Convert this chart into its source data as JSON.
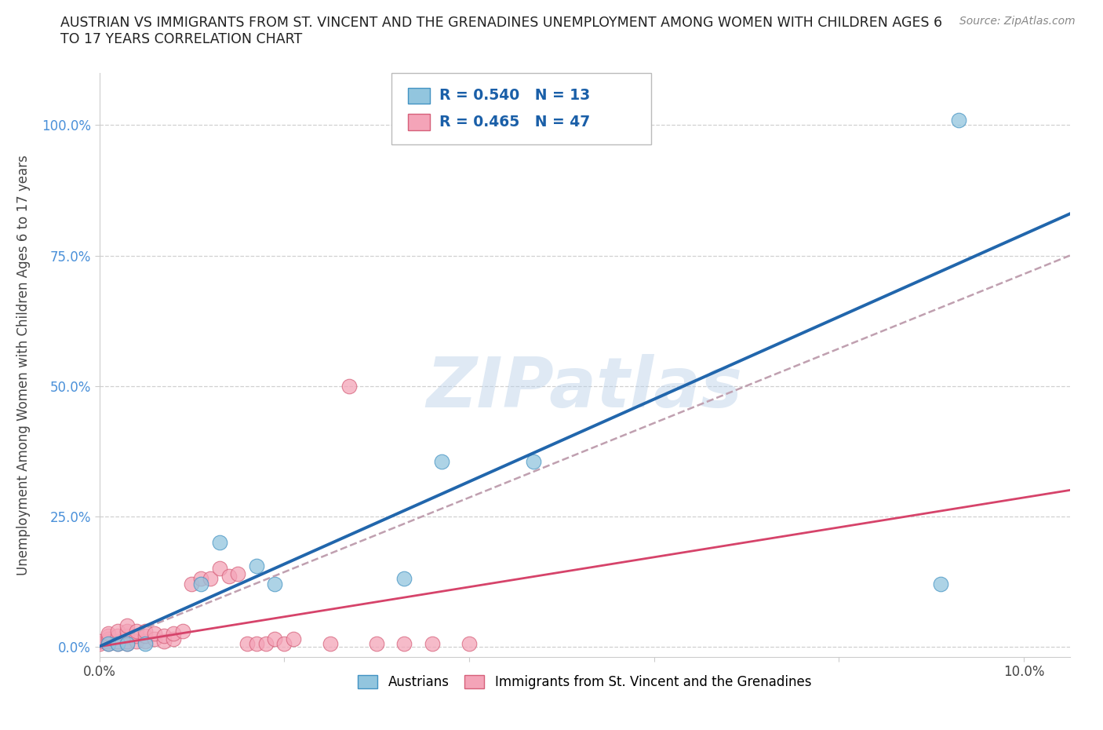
{
  "title_line1": "AUSTRIAN VS IMMIGRANTS FROM ST. VINCENT AND THE GRENADINES UNEMPLOYMENT AMONG WOMEN WITH CHILDREN AGES 6",
  "title_line2": "TO 17 YEARS CORRELATION CHART",
  "source": "Source: ZipAtlas.com",
  "ylabel": "Unemployment Among Women with Children Ages 6 to 17 years",
  "xlim": [
    0.0,
    0.105
  ],
  "ylim": [
    -0.02,
    1.1
  ],
  "yticks": [
    0.0,
    0.25,
    0.5,
    0.75,
    1.0
  ],
  "ytick_labels": [
    "0.0%",
    "25.0%",
    "50.0%",
    "75.0%",
    "100.0%"
  ],
  "xtick_vals": [
    0.0,
    0.02,
    0.04,
    0.06,
    0.08,
    0.1
  ],
  "xtick_labels": [
    "0.0%",
    "",
    "",
    "",
    "",
    "10.0%"
  ],
  "blue_color": "#92c5de",
  "blue_edge": "#4393c3",
  "pink_color": "#f4a4b8",
  "pink_edge": "#d6607a",
  "blue_line_color": "#2166ac",
  "pink_line_color": "#d6436a",
  "gray_dash_color": "#c0a0b0",
  "watermark": "ZIPatlas",
  "R_blue": "0.540",
  "N_blue": "13",
  "R_pink": "0.465",
  "N_pink": "47",
  "legend_label_blue": "Austrians",
  "legend_label_pink": "Immigrants from St. Vincent and the Grenadines",
  "blue_pts_x": [
    0.001,
    0.002,
    0.003,
    0.005,
    0.011,
    0.013,
    0.017,
    0.019,
    0.033,
    0.037,
    0.047,
    0.091,
    0.093
  ],
  "blue_pts_y": [
    0.005,
    0.005,
    0.005,
    0.005,
    0.12,
    0.2,
    0.155,
    0.12,
    0.13,
    0.355,
    0.355,
    0.12,
    1.01
  ],
  "pink_pts_x": [
    0.0,
    0.0,
    0.001,
    0.001,
    0.001,
    0.001,
    0.001,
    0.002,
    0.002,
    0.002,
    0.002,
    0.003,
    0.003,
    0.003,
    0.003,
    0.003,
    0.004,
    0.004,
    0.004,
    0.005,
    0.005,
    0.005,
    0.006,
    0.006,
    0.007,
    0.007,
    0.008,
    0.008,
    0.009,
    0.01,
    0.011,
    0.012,
    0.013,
    0.014,
    0.015,
    0.016,
    0.017,
    0.018,
    0.019,
    0.02,
    0.021,
    0.025,
    0.027,
    0.03,
    0.033,
    0.036,
    0.04
  ],
  "pink_pts_y": [
    0.005,
    0.01,
    0.005,
    0.01,
    0.015,
    0.02,
    0.025,
    0.005,
    0.01,
    0.02,
    0.03,
    0.005,
    0.01,
    0.02,
    0.03,
    0.04,
    0.01,
    0.02,
    0.03,
    0.01,
    0.02,
    0.03,
    0.015,
    0.025,
    0.01,
    0.02,
    0.015,
    0.025,
    0.03,
    0.12,
    0.13,
    0.13,
    0.15,
    0.135,
    0.14,
    0.005,
    0.005,
    0.005,
    0.015,
    0.005,
    0.015,
    0.005,
    0.5,
    0.005,
    0.005,
    0.005,
    0.005
  ],
  "blue_trend_x0": 0.0,
  "blue_trend_y0": 0.0,
  "blue_trend_x1": 0.105,
  "blue_trend_y1": 0.83,
  "pink_trend_x0": 0.0,
  "pink_trend_y0": 0.0,
  "pink_trend_x1": 0.105,
  "pink_trend_y1": 0.3,
  "gray_trend_x0": 0.0,
  "gray_trend_y0": 0.0,
  "gray_trend_x1": 0.105,
  "gray_trend_y1": 0.75
}
